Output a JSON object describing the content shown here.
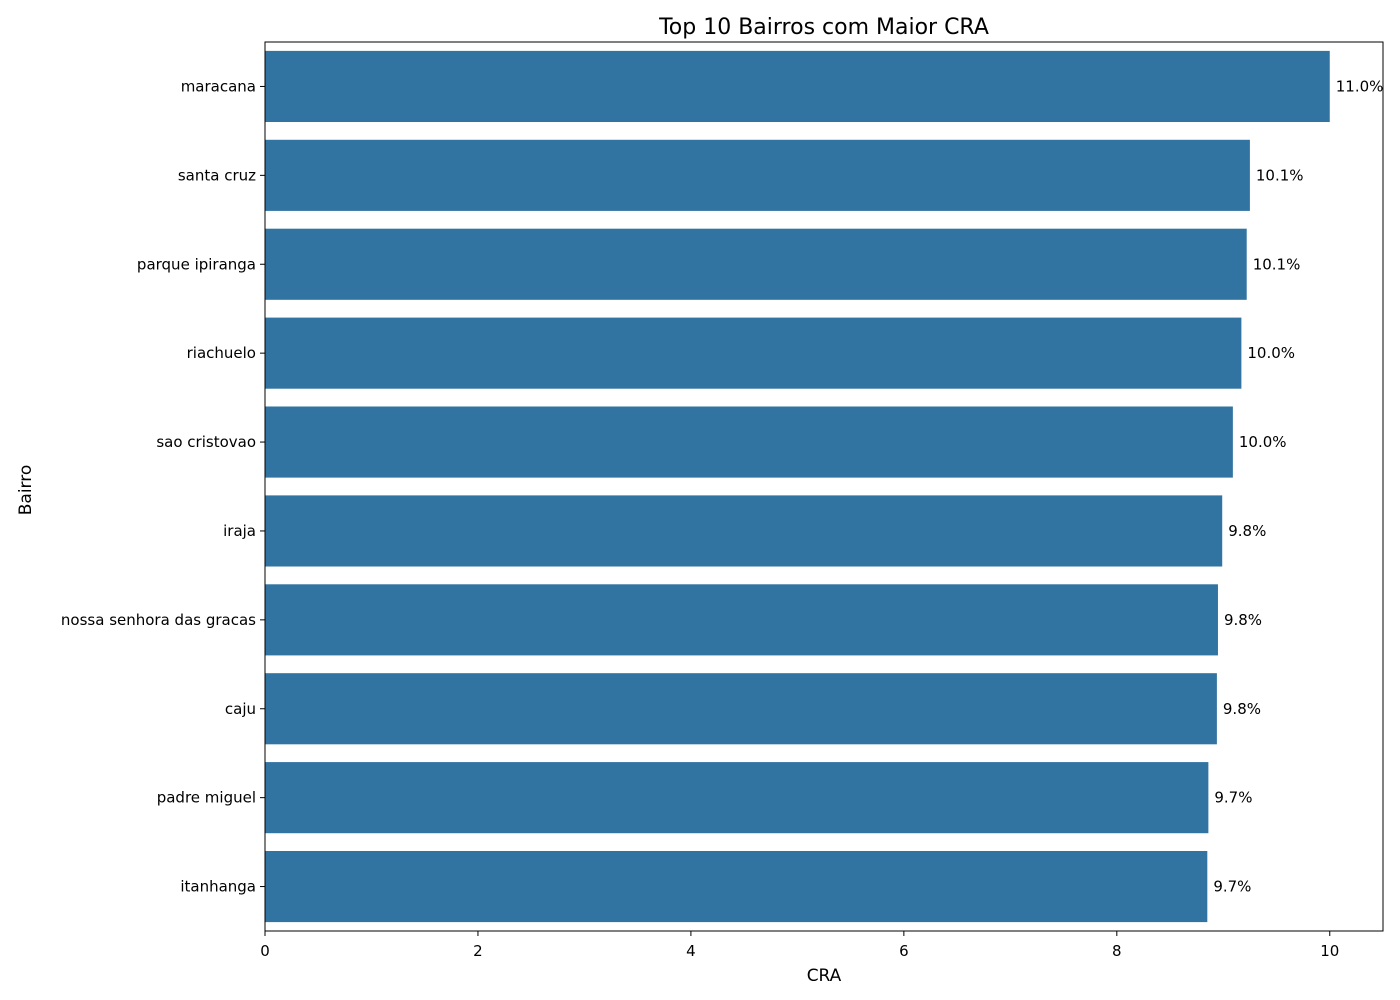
{
  "chart_data": {
    "type": "bar",
    "orientation": "horizontal",
    "title": "Top 10 Bairros com Maior CRA",
    "xlabel": "CRA",
    "ylabel": "Bairro",
    "categories": [
      "maracana",
      "santa cruz",
      "parque ipiranga",
      "riachuelo",
      "sao cristovao",
      "iraja",
      "nossa senhora das gracas",
      "caju",
      "padre miguel",
      "itanhanga"
    ],
    "values": [
      10.0,
      9.25,
      9.22,
      9.17,
      9.09,
      8.99,
      8.95,
      8.94,
      8.86,
      8.85
    ],
    "data_labels": [
      "11.0%",
      "10.1%",
      "10.1%",
      "10.0%",
      "10.0%",
      "9.8%",
      "9.8%",
      "9.8%",
      "9.7%",
      "9.7%"
    ],
    "xlim": [
      0,
      10.5
    ],
    "xticks": [
      0,
      2,
      4,
      6,
      8,
      10
    ],
    "xtick_labels": [
      "0",
      "2",
      "4",
      "6",
      "8",
      "10"
    ],
    "bar_color": "#3274a1",
    "grid": false,
    "legend": "none"
  }
}
